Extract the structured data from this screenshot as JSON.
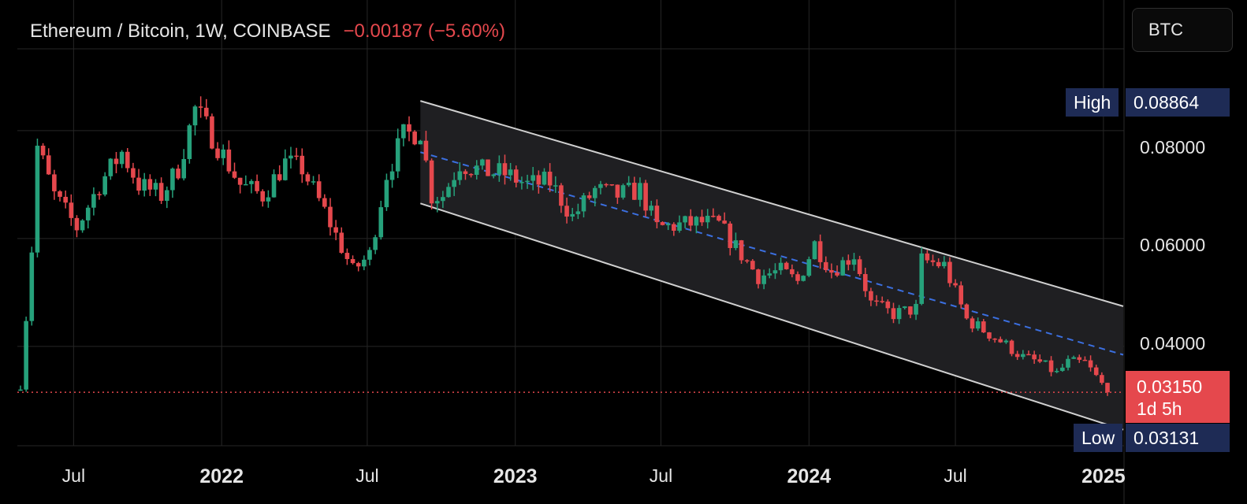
{
  "header": {
    "symbol": "Ethereum / Bitcoin, 1W, COINBASE",
    "change": "−0.00187 (−5.60%)"
  },
  "currency_button": "BTC",
  "price_tags": {
    "high_label": "High",
    "high_value": "0.08864",
    "low_label": "Low",
    "low_value": "0.03131",
    "last_value": "0.03150",
    "countdown": "1d 5h"
  },
  "colors": {
    "up": "#26a17b",
    "down": "#e5484d",
    "channel_line": "#d0d0d0",
    "channel_fill": "#1f1f22",
    "midline": "#3b6fe0",
    "price_line": "#e5484d",
    "grid": "#262626"
  },
  "chart_data": {
    "type": "candlestick",
    "title": "Ethereum / Bitcoin, 1W, COINBASE",
    "interval": "1W",
    "ylim": [
      0.0216,
      0.1042
    ],
    "y_ticks": [
      "0.08000",
      "0.06000",
      "0.04000"
    ],
    "y_tick_values": [
      0.08,
      0.06,
      0.04
    ],
    "x_ticks": [
      {
        "label": "Jul",
        "date": "2021-07-01",
        "bold": false
      },
      {
        "label": "2022",
        "date": "2022-01-01",
        "bold": true
      },
      {
        "label": "Jul",
        "date": "2022-07-01",
        "bold": false
      },
      {
        "label": "2023",
        "date": "2023-01-01",
        "bold": true
      },
      {
        "label": "Jul",
        "date": "2023-07-01",
        "bold": false
      },
      {
        "label": "2024",
        "date": "2024-01-01",
        "bold": true
      },
      {
        "label": "Jul",
        "date": "2024-07-01",
        "bold": false
      },
      {
        "label": "2025",
        "date": "2025-01-01",
        "bold": true
      }
    ],
    "grid": true,
    "last_price": 0.0315,
    "high": 0.08864,
    "low": 0.03131,
    "channel": {
      "start": "2022-09-05",
      "end": "2025-01-06",
      "upper": [
        0.0855,
        0.0483
      ],
      "lower": [
        0.0665,
        0.0255
      ],
      "mid": [
        0.076,
        0.0393
      ]
    },
    "anchor_points": [
      [
        "2021-04-26",
        0.033
      ],
      [
        "2021-05-10",
        0.058
      ],
      [
        "2021-05-17",
        0.077
      ],
      [
        "2021-06-07",
        0.068
      ],
      [
        "2021-07-05",
        0.062
      ],
      [
        "2021-08-02",
        0.07
      ],
      [
        "2021-08-30",
        0.076
      ],
      [
        "2021-09-20",
        0.07
      ],
      [
        "2021-10-18",
        0.068
      ],
      [
        "2021-11-08",
        0.073
      ],
      [
        "2021-11-29",
        0.084
      ],
      [
        "2021-12-20",
        0.079
      ],
      [
        "2022-01-24",
        0.07
      ],
      [
        "2022-02-21",
        0.068
      ],
      [
        "2022-03-21",
        0.074
      ],
      [
        "2022-04-11",
        0.073
      ],
      [
        "2022-05-09",
        0.065
      ],
      [
        "2022-06-13",
        0.054
      ],
      [
        "2022-07-04",
        0.057
      ],
      [
        "2022-07-25",
        0.072
      ],
      [
        "2022-08-15",
        0.079
      ],
      [
        "2022-09-05",
        0.08
      ],
      [
        "2022-09-19",
        0.068
      ],
      [
        "2022-10-03",
        0.068
      ],
      [
        "2022-10-24",
        0.074
      ],
      [
        "2022-11-21",
        0.0725
      ],
      [
        "2022-12-19",
        0.072
      ],
      [
        "2023-01-16",
        0.07
      ],
      [
        "2023-02-13",
        0.0705
      ],
      [
        "2023-03-13",
        0.064
      ],
      [
        "2023-04-10",
        0.069
      ],
      [
        "2023-05-08",
        0.068
      ],
      [
        "2023-06-05",
        0.069
      ],
      [
        "2023-06-26",
        0.062
      ],
      [
        "2023-07-24",
        0.0625
      ],
      [
        "2023-08-21",
        0.063
      ],
      [
        "2023-09-11",
        0.0625
      ],
      [
        "2023-10-09",
        0.057
      ],
      [
        "2023-10-30",
        0.053
      ],
      [
        "2023-11-27",
        0.054
      ],
      [
        "2023-12-18",
        0.052
      ],
      [
        "2024-01-08",
        0.059
      ],
      [
        "2024-01-29",
        0.054
      ],
      [
        "2024-02-26",
        0.057
      ],
      [
        "2024-03-18",
        0.048
      ],
      [
        "2024-04-15",
        0.046
      ],
      [
        "2024-05-13",
        0.047
      ],
      [
        "2024-05-20",
        0.056
      ],
      [
        "2024-06-17",
        0.055
      ],
      [
        "2024-07-15",
        0.045
      ],
      [
        "2024-08-05",
        0.043
      ],
      [
        "2024-08-26",
        0.041
      ],
      [
        "2024-09-23",
        0.038
      ],
      [
        "2024-10-14",
        0.037
      ],
      [
        "2024-11-04",
        0.035
      ],
      [
        "2024-11-18",
        0.037
      ],
      [
        "2024-12-09",
        0.037
      ],
      [
        "2024-12-30",
        0.033
      ],
      [
        "2025-01-06",
        0.0315
      ]
    ]
  }
}
